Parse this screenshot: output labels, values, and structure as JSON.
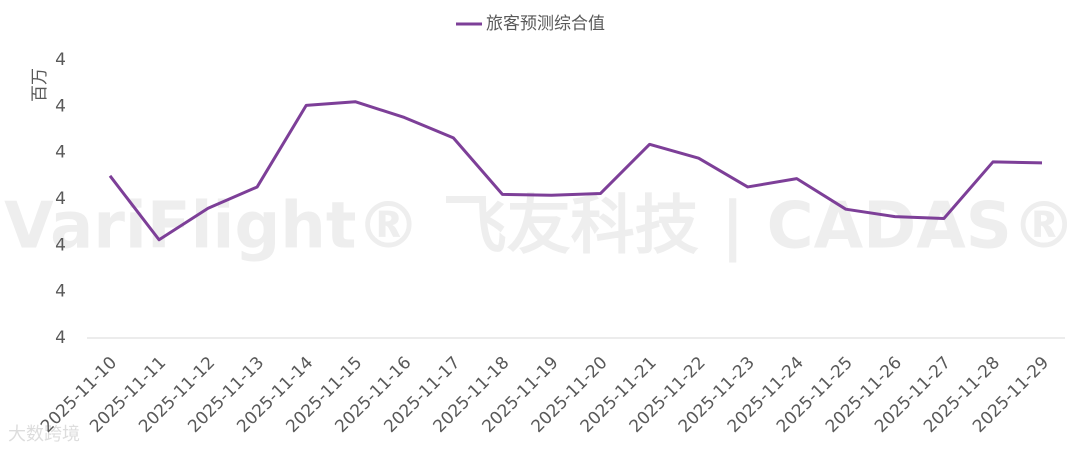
{
  "chart_data": {
    "type": "line",
    "legend_position": "top",
    "y_axis_label": "百万",
    "watermark": "VariFlight® 飞友科技 | CADAS®",
    "corner_watermark": "大数跨境",
    "x": [
      "2025-11-10",
      "2025-11-11",
      "2025-11-12",
      "2025-11-13",
      "2025-11-14",
      "2025-11-15",
      "2025-11-16",
      "2025-11-17",
      "2025-11-18",
      "2025-11-19",
      "2025-11-20",
      "2025-11-21",
      "2025-11-22",
      "2025-11-23",
      "2025-11-24",
      "2025-11-25",
      "2025-11-26",
      "2025-11-27",
      "2025-11-28",
      "2025-11-29"
    ],
    "series": [
      {
        "name": "旅客预测综合值",
        "color": "#7d3f98",
        "values": [
          4.025,
          3.956,
          3.99,
          4.013,
          4.101,
          4.105,
          4.088,
          4.066,
          4.005,
          4.004,
          4.006,
          4.059,
          4.044,
          4.013,
          4.022,
          3.989,
          3.981,
          3.979,
          4.04,
          4.039
        ]
      }
    ],
    "ylim": [
      3.85,
      4.15
    ],
    "yticks": [
      {
        "value": 3.85,
        "label": "4"
      },
      {
        "value": 3.9,
        "label": "4"
      },
      {
        "value": 3.95,
        "label": "4"
      },
      {
        "value": 4.0,
        "label": "4"
      },
      {
        "value": 4.05,
        "label": "4"
      },
      {
        "value": 4.1,
        "label": "4"
      },
      {
        "value": 4.15,
        "label": "4"
      }
    ],
    "grid": false
  }
}
